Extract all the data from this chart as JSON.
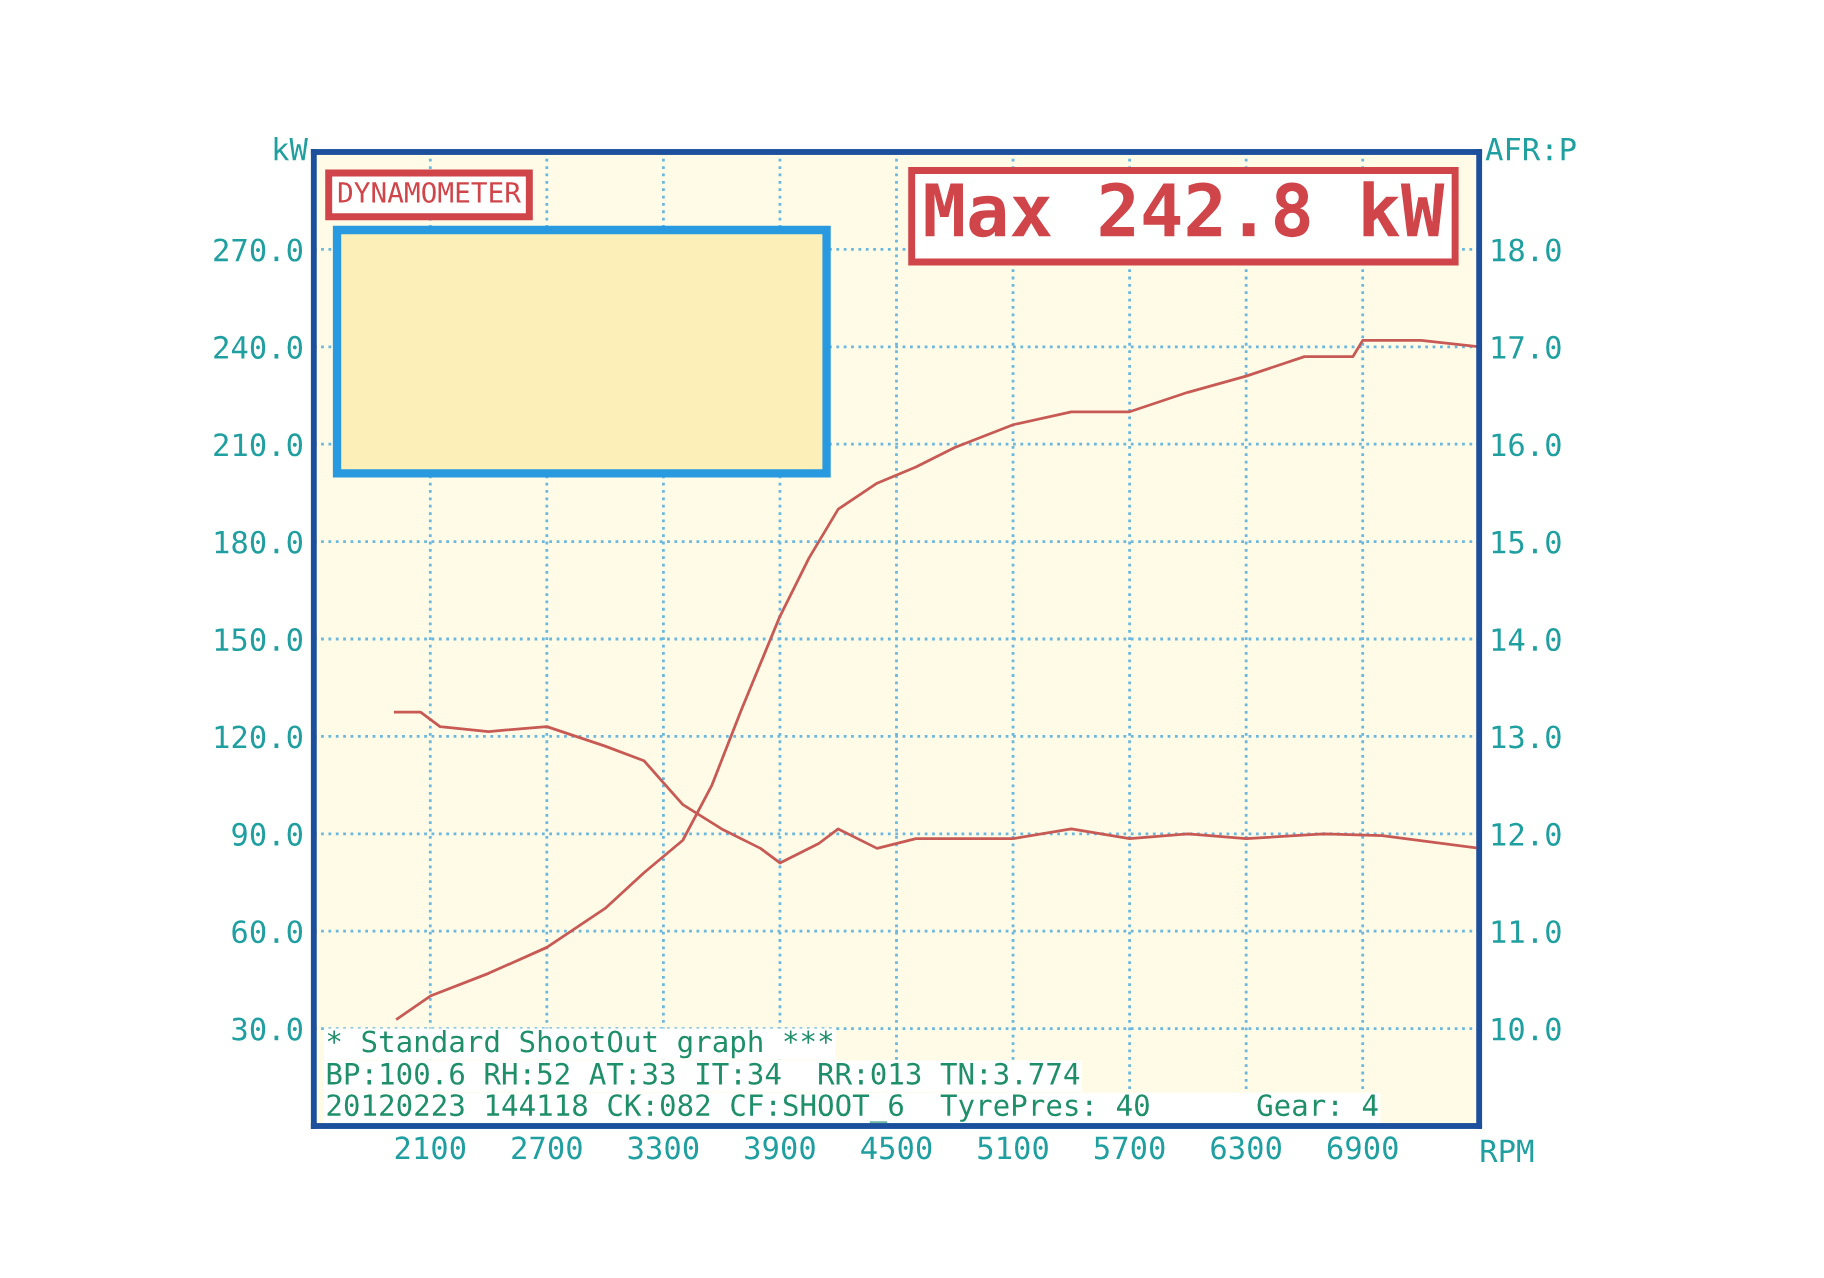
{
  "chart_data": {
    "type": "line",
    "title": "DYNAMOMETER",
    "xlabel": "RPM",
    "ylabel": "kW",
    "y2label": "AFR:P",
    "xlim": [
      1500,
      7500
    ],
    "xticks": [
      2100,
      2700,
      3300,
      3900,
      4500,
      5100,
      5700,
      6300,
      6900
    ],
    "ylim": [
      0,
      300
    ],
    "yticks": [
      {
        "value": 30,
        "label": "30.0"
      },
      {
        "value": 60,
        "label": "60.0"
      },
      {
        "value": 90,
        "label": "90.0"
      },
      {
        "value": 120,
        "label": "120.0"
      },
      {
        "value": 150,
        "label": "150.0"
      },
      {
        "value": 180,
        "label": "180.0"
      },
      {
        "value": 210,
        "label": "210.0"
      },
      {
        "value": 240,
        "label": "240.0"
      },
      {
        "value": 270,
        "label": "270.0"
      }
    ],
    "y2lim": [
      9,
      19
    ],
    "y2ticks": [
      {
        "value": 10,
        "label": "10.0"
      },
      {
        "value": 11,
        "label": "11.0"
      },
      {
        "value": 12,
        "label": "12.0"
      },
      {
        "value": 13,
        "label": "13.0"
      },
      {
        "value": 14,
        "label": "14.0"
      },
      {
        "value": 15,
        "label": "15.0"
      },
      {
        "value": 16,
        "label": "16.0"
      },
      {
        "value": 17,
        "label": "17.0"
      },
      {
        "value": 18,
        "label": "18.0"
      }
    ],
    "grid": true,
    "marker": "none",
    "line_style": "solid",
    "series": [
      {
        "color": "#c85a55",
        "x": [
          1930,
          2100,
          2400,
          2700,
          3000,
          3200,
          3400,
          3550,
          3700,
          3900,
          4050,
          4200,
          4400,
          4600,
          4800,
          5100,
          5400,
          5700,
          6000,
          6300,
          6600,
          6850,
          6900,
          7200,
          7500
        ],
        "values": [
          33,
          40,
          47,
          55,
          67,
          78,
          88,
          105,
          128,
          157,
          175,
          190,
          198,
          203,
          209,
          216,
          220,
          220,
          226,
          231,
          237,
          237,
          242,
          242,
          240
        ]
      },
      {
        "color": "#c85a55",
        "axis": "y2",
        "x": [
          1920,
          2050,
          2150,
          2400,
          2700,
          3000,
          3200,
          3400,
          3600,
          3800,
          3900,
          4100,
          4200,
          4400,
          4600,
          5100,
          5400,
          5700,
          6000,
          6300,
          6700,
          7000,
          7500
        ],
        "values": [
          13.25,
          13.25,
          13.1,
          13.05,
          13.1,
          12.9,
          12.75,
          12.3,
          12.05,
          11.85,
          11.7,
          11.9,
          12.05,
          11.85,
          11.95,
          11.95,
          12.05,
          11.95,
          12.0,
          11.95,
          12.0,
          11.98,
          11.85
        ]
      }
    ],
    "annotations": [
      "Max 242.8 kW",
      "* Standard ShootOut graph ***",
      "BP:100.6 RH:52 AT:33 IT:34  RR:013 TN:3.774",
      "20120223 144118 CK:082 CF:SHOOT_6  TyrePres: 40      Gear: 4"
    ]
  }
}
